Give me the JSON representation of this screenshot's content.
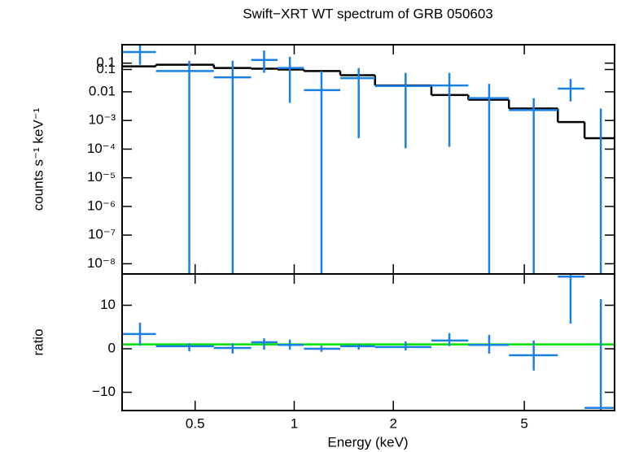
{
  "chart_data": [
    {
      "type": "errorbar",
      "title": "Swift−XRT WT spectrum of GRB 050603",
      "ylabel": "counts s⁻¹ keV⁻¹",
      "log_y": true,
      "color": "#1a80e5",
      "x": [
        0.34,
        0.48,
        0.65,
        0.81,
        0.97,
        1.21,
        1.57,
        2.18,
        2.96,
        3.91,
        5.34,
        6.91,
        8.54
      ],
      "x_lo": [
        0.3,
        0.38,
        0.57,
        0.74,
        0.89,
        1.07,
        1.38,
        1.76,
        2.61,
        3.38,
        4.49,
        6.32,
        7.62
      ],
      "x_hi": [
        0.38,
        0.57,
        0.74,
        0.89,
        1.07,
        1.38,
        1.76,
        2.61,
        3.38,
        4.49,
        6.32,
        7.62,
        9.38
      ],
      "y": [
        0.245,
        0.053,
        0.032,
        0.129,
        0.068,
        0.0114,
        0.03,
        0.016,
        0.0167,
        0.006,
        0.0023,
        0.0129,
        null
      ],
      "y_lo": [
        0.088,
        1e-09,
        1e-09,
        0.046,
        0.0041,
        1e-09,
        0.00024,
        0.000107,
        0.00012,
        1e-09,
        1e-09,
        0.0046,
        1e-09
      ],
      "y_hi": [
        0.435,
        0.121,
        0.121,
        0.278,
        0.167,
        0.053,
        0.068,
        0.046,
        0.046,
        0.019,
        0.006,
        0.028,
        0.0026
      ],
      "model": {
        "color": "#000000",
        "edges": [
          0.3,
          0.38,
          0.57,
          0.74,
          0.89,
          1.07,
          1.38,
          1.76,
          2.61,
          3.38,
          4.49,
          6.32,
          7.62,
          9.38
        ],
        "values": [
          0.077,
          0.088,
          0.068,
          0.064,
          0.06,
          0.053,
          0.038,
          0.0167,
          0.0077,
          0.0053,
          0.0026,
          0.00088,
          0.00024
        ]
      },
      "ylim": [
        4.4e-09,
        0.44
      ],
      "yticks": [
        {
          "value": 0.1,
          "label": "0.1"
        },
        {
          "value": 0.06,
          "label": "0.1"
        },
        0.01,
        {
          "value": 0.001,
          "label": "10⁻³"
        },
        {
          "value": 0.0001,
          "label": "10⁻⁴"
        },
        {
          "value": 1e-05,
          "label": "10⁻⁵"
        },
        {
          "value": 1e-06,
          "label": "10⁻⁶"
        },
        {
          "value": 1e-07,
          "label": "10⁻⁷"
        },
        {
          "value": 1e-08,
          "label": "10⁻⁸"
        }
      ]
    },
    {
      "type": "errorbar",
      "ylabel": "ratio",
      "xlabel": "Energy (keV)",
      "log_x": true,
      "color": "#1a80e5",
      "x": [
        0.34,
        0.48,
        0.65,
        0.81,
        0.97,
        1.21,
        1.57,
        2.18,
        2.96,
        3.91,
        5.34,
        6.91,
        8.54
      ],
      "x_lo": [
        0.3,
        0.38,
        0.57,
        0.74,
        0.89,
        1.07,
        1.38,
        1.76,
        2.61,
        3.38,
        4.49,
        6.32,
        7.62
      ],
      "x_hi": [
        0.38,
        0.57,
        0.74,
        0.89,
        1.07,
        1.38,
        1.76,
        2.61,
        3.38,
        4.49,
        6.32,
        7.62,
        9.38
      ],
      "y": [
        3.4,
        0.6,
        0.2,
        1.5,
        0.9,
        0.0,
        0.6,
        0.4,
        1.9,
        0.9,
        -1.5,
        16.6,
        -13.6
      ],
      "y_lo": [
        0.7,
        -0.6,
        -1.1,
        -0.2,
        -0.2,
        -0.7,
        -0.2,
        -0.4,
        0.6,
        -1.1,
        -5.0,
        5.8,
        -15
      ],
      "y_hi": [
        6.0,
        1.3,
        1.3,
        2.4,
        2.1,
        0.7,
        1.1,
        1.7,
        3.6,
        3.2,
        1.9,
        18,
        11.4
      ],
      "ref_line": {
        "value": 1,
        "color": "#00e000"
      },
      "ylim": [
        -14.2,
        17.2
      ],
      "yticks": [
        10,
        0,
        {
          "value": -10,
          "label": "−10"
        }
      ],
      "xlim": [
        0.3,
        9.4
      ],
      "xticks": [
        0.5,
        1,
        2,
        5
      ]
    }
  ]
}
